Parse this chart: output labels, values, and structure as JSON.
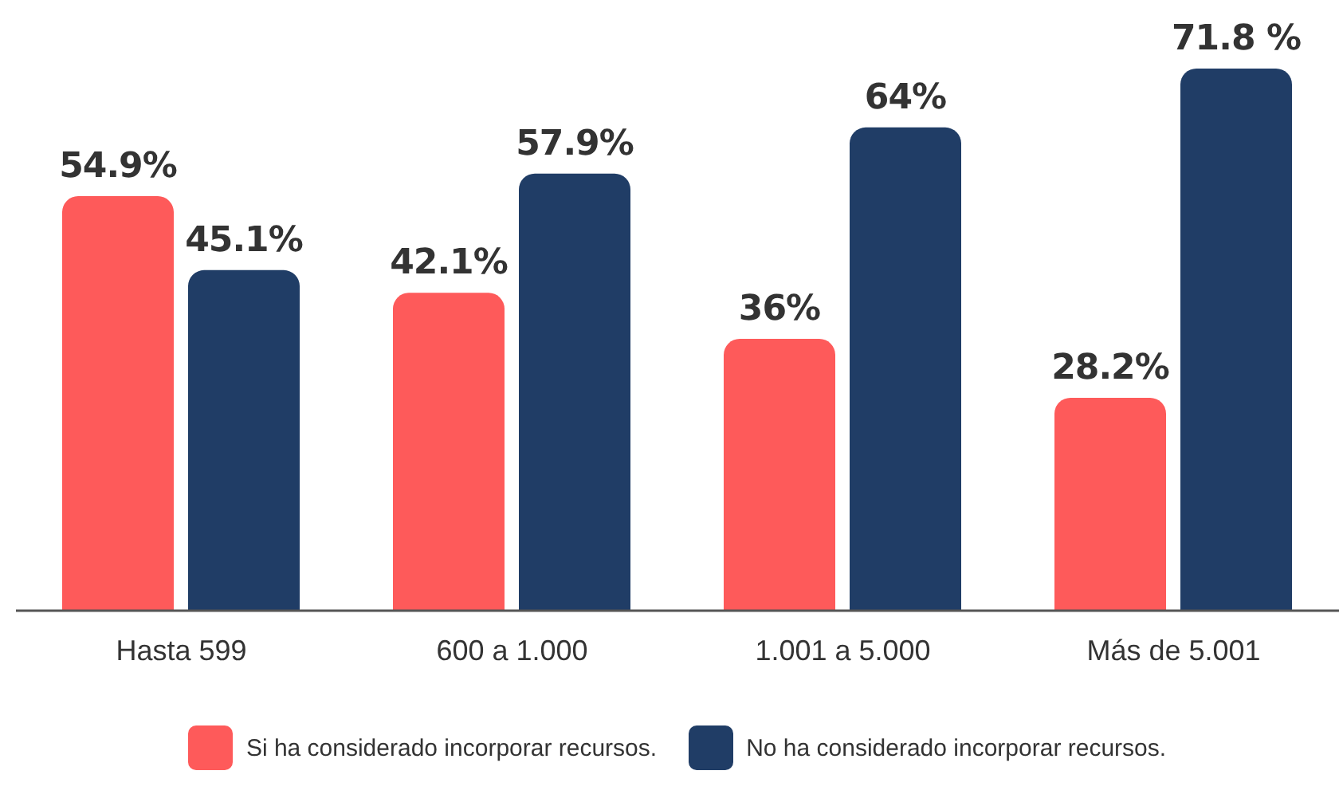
{
  "chart_data": {
    "type": "bar",
    "categories": [
      "Hasta 599",
      "600 a 1.000",
      "1.001 a 5.000",
      "Más de 5.001"
    ],
    "series": [
      {
        "name": "Si ha considerado incorporar recursos.",
        "color": "#fe5a5a",
        "values": [
          54.9,
          42.1,
          36,
          28.2
        ],
        "value_labels": [
          "54.9%",
          "42.1%",
          "36%",
          "28.2%"
        ]
      },
      {
        "name": "No ha considerado incorporar recursos.",
        "color": "#203d66",
        "values": [
          45.1,
          57.9,
          64,
          71.8
        ],
        "value_labels": [
          "45.1%",
          "57.9%",
          "64%",
          "71.8 %"
        ]
      }
    ],
    "legend": "bottom",
    "grid": false
  }
}
